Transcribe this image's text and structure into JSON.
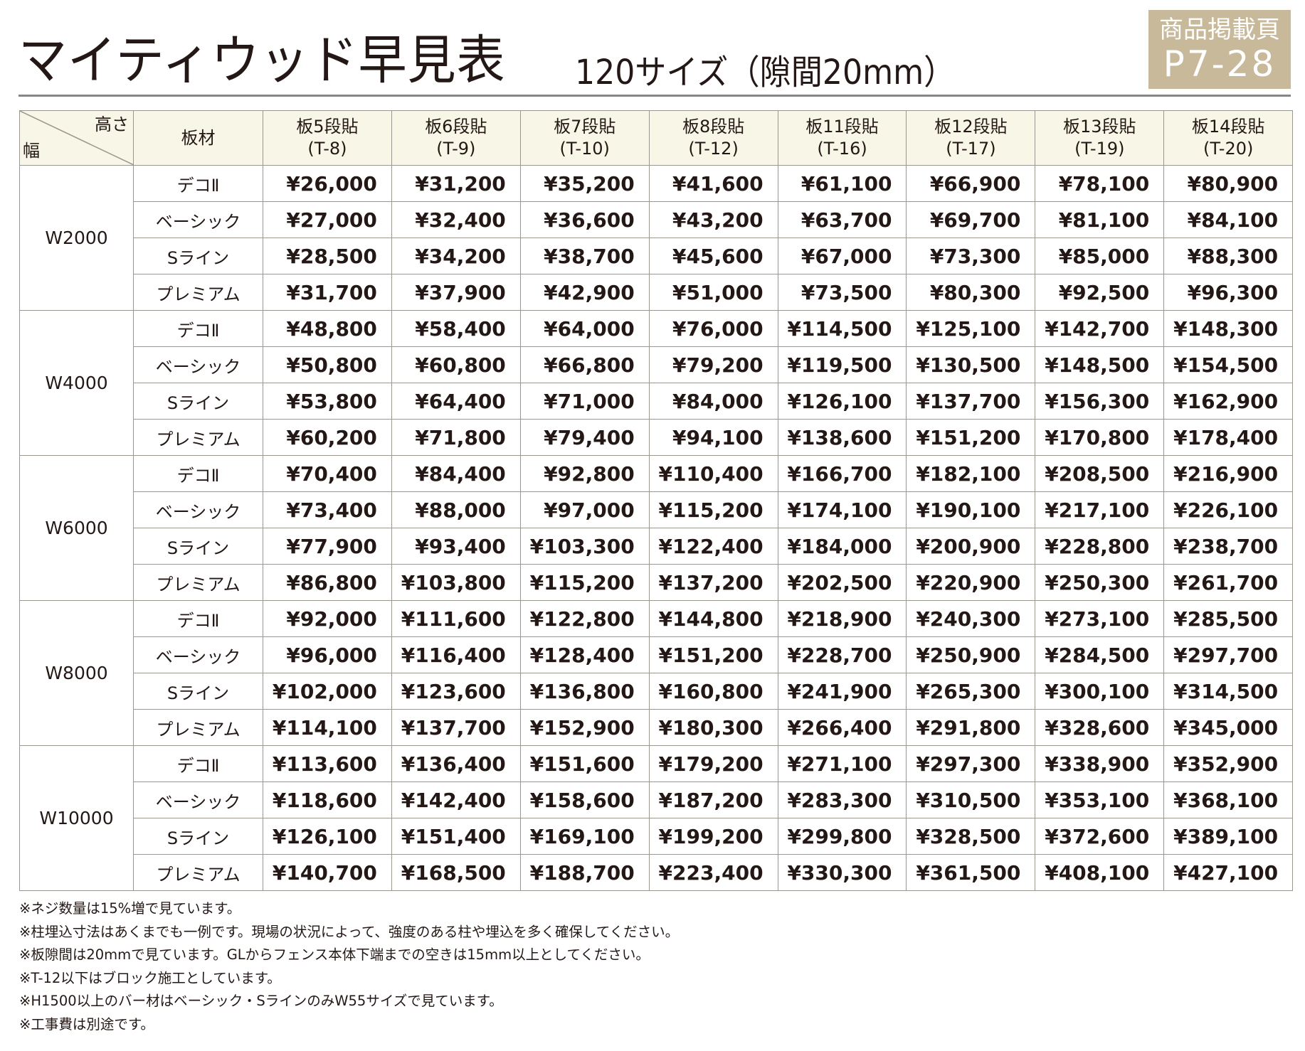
{
  "header": {
    "title": "マイティウッド早見表",
    "subtitle": "120サイズ（隙間20mm）",
    "badge_label": "商品掲載頁",
    "badge_page": "P7-28"
  },
  "table": {
    "corner_height": "高さ",
    "corner_width": "幅",
    "material_header": "板材",
    "columns": [
      {
        "label": "板5段貼",
        "code": "(T-8)"
      },
      {
        "label": "板6段貼",
        "code": "(T-9)"
      },
      {
        "label": "板7段貼",
        "code": "(T-10)"
      },
      {
        "label": "板8段貼",
        "code": "(T-12)"
      },
      {
        "label": "板11段貼",
        "code": "(T-16)"
      },
      {
        "label": "板12段貼",
        "code": "(T-17)"
      },
      {
        "label": "板13段貼",
        "code": "(T-19)"
      },
      {
        "label": "板14段貼",
        "code": "(T-20)"
      }
    ],
    "groups": [
      {
        "width": "W2000",
        "rows": [
          {
            "material": "デコⅡ",
            "prices": [
              "¥26,000",
              "¥31,200",
              "¥35,200",
              "¥41,600",
              "¥61,100",
              "¥66,900",
              "¥78,100",
              "¥80,900"
            ]
          },
          {
            "material": "ベーシック",
            "prices": [
              "¥27,000",
              "¥32,400",
              "¥36,600",
              "¥43,200",
              "¥63,700",
              "¥69,700",
              "¥81,100",
              "¥84,100"
            ]
          },
          {
            "material": "Sライン",
            "prices": [
              "¥28,500",
              "¥34,200",
              "¥38,700",
              "¥45,600",
              "¥67,000",
              "¥73,300",
              "¥85,000",
              "¥88,300"
            ]
          },
          {
            "material": "プレミアム",
            "prices": [
              "¥31,700",
              "¥37,900",
              "¥42,900",
              "¥51,000",
              "¥73,500",
              "¥80,300",
              "¥92,500",
              "¥96,300"
            ]
          }
        ]
      },
      {
        "width": "W4000",
        "rows": [
          {
            "material": "デコⅡ",
            "prices": [
              "¥48,800",
              "¥58,400",
              "¥64,000",
              "¥76,000",
              "¥114,500",
              "¥125,100",
              "¥142,700",
              "¥148,300"
            ]
          },
          {
            "material": "ベーシック",
            "prices": [
              "¥50,800",
              "¥60,800",
              "¥66,800",
              "¥79,200",
              "¥119,500",
              "¥130,500",
              "¥148,500",
              "¥154,500"
            ]
          },
          {
            "material": "Sライン",
            "prices": [
              "¥53,800",
              "¥64,400",
              "¥71,000",
              "¥84,000",
              "¥126,100",
              "¥137,700",
              "¥156,300",
              "¥162,900"
            ]
          },
          {
            "material": "プレミアム",
            "prices": [
              "¥60,200",
              "¥71,800",
              "¥79,400",
              "¥94,100",
              "¥138,600",
              "¥151,200",
              "¥170,800",
              "¥178,400"
            ]
          }
        ]
      },
      {
        "width": "W6000",
        "rows": [
          {
            "material": "デコⅡ",
            "prices": [
              "¥70,400",
              "¥84,400",
              "¥92,800",
              "¥110,400",
              "¥166,700",
              "¥182,100",
              "¥208,500",
              "¥216,900"
            ]
          },
          {
            "material": "ベーシック",
            "prices": [
              "¥73,400",
              "¥88,000",
              "¥97,000",
              "¥115,200",
              "¥174,100",
              "¥190,100",
              "¥217,100",
              "¥226,100"
            ]
          },
          {
            "material": "Sライン",
            "prices": [
              "¥77,900",
              "¥93,400",
              "¥103,300",
              "¥122,400",
              "¥184,000",
              "¥200,900",
              "¥228,800",
              "¥238,700"
            ]
          },
          {
            "material": "プレミアム",
            "prices": [
              "¥86,800",
              "¥103,800",
              "¥115,200",
              "¥137,200",
              "¥202,500",
              "¥220,900",
              "¥250,300",
              "¥261,700"
            ]
          }
        ]
      },
      {
        "width": "W8000",
        "rows": [
          {
            "material": "デコⅡ",
            "prices": [
              "¥92,000",
              "¥111,600",
              "¥122,800",
              "¥144,800",
              "¥218,900",
              "¥240,300",
              "¥273,100",
              "¥285,500"
            ]
          },
          {
            "material": "ベーシック",
            "prices": [
              "¥96,000",
              "¥116,400",
              "¥128,400",
              "¥151,200",
              "¥228,700",
              "¥250,900",
              "¥284,500",
              "¥297,700"
            ]
          },
          {
            "material": "Sライン",
            "prices": [
              "¥102,000",
              "¥123,600",
              "¥136,800",
              "¥160,800",
              "¥241,900",
              "¥265,300",
              "¥300,100",
              "¥314,500"
            ]
          },
          {
            "material": "プレミアム",
            "prices": [
              "¥114,100",
              "¥137,700",
              "¥152,900",
              "¥180,300",
              "¥266,400",
              "¥291,800",
              "¥328,600",
              "¥345,000"
            ]
          }
        ]
      },
      {
        "width": "W10000",
        "rows": [
          {
            "material": "デコⅡ",
            "prices": [
              "¥113,600",
              "¥136,400",
              "¥151,600",
              "¥179,200",
              "¥271,100",
              "¥297,300",
              "¥338,900",
              "¥352,900"
            ]
          },
          {
            "material": "ベーシック",
            "prices": [
              "¥118,600",
              "¥142,400",
              "¥158,600",
              "¥187,200",
              "¥283,300",
              "¥310,500",
              "¥353,100",
              "¥368,100"
            ]
          },
          {
            "material": "Sライン",
            "prices": [
              "¥126,100",
              "¥151,400",
              "¥169,100",
              "¥199,200",
              "¥299,800",
              "¥328,500",
              "¥372,600",
              "¥389,100"
            ]
          },
          {
            "material": "プレミアム",
            "prices": [
              "¥140,700",
              "¥168,500",
              "¥188,700",
              "¥223,400",
              "¥330,300",
              "¥361,500",
              "¥408,100",
              "¥427,100"
            ]
          }
        ]
      }
    ]
  },
  "notes": [
    "※ネジ数量は15%増で見ています。",
    "※柱埋込寸法はあくまでも一例です。現場の状況によって、強度のある柱や埋込を多く確保してください。",
    "※板隙間は20mmで見ています。GLからフェンス本体下端までの空きは15mm以上としてください。",
    "※T-12以下はブロック施工としています。",
    "※H1500以上のバー材はベーシック・SラインのみW55サイズで見ています。",
    "※工事費は別途です。"
  ],
  "colors": {
    "badge": "#c8b99a",
    "header_bg": "#f8f6e6",
    "border": "#9c9690",
    "text": "#231815"
  }
}
